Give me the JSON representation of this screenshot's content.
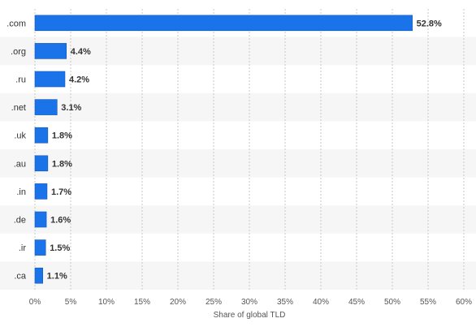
{
  "chart_data": {
    "type": "bar",
    "orientation": "horizontal",
    "categories": [
      ".com",
      ".org",
      ".ru",
      ".net",
      ".uk",
      ".au",
      ".in",
      ".de",
      ".ir",
      ".ca"
    ],
    "values": [
      52.8,
      4.4,
      4.2,
      3.1,
      1.8,
      1.8,
      1.7,
      1.6,
      1.5,
      1.1
    ],
    "value_labels": [
      "52.8%",
      "4.4%",
      "4.2%",
      "3.1%",
      "1.8%",
      "1.8%",
      "1.7%",
      "1.6%",
      "1.5%",
      "1.1%"
    ],
    "xlabel": "Share of global TLD",
    "ylabel": "",
    "xlim": [
      0,
      60
    ],
    "x_ticks": [
      0,
      5,
      10,
      15,
      20,
      25,
      30,
      35,
      40,
      45,
      50,
      55,
      60
    ],
    "x_tick_labels": [
      "0%",
      "5%",
      "10%",
      "15%",
      "20%",
      "25%",
      "30%",
      "35%",
      "40%",
      "45%",
      "50%",
      "55%",
      "60%"
    ],
    "grid": "vertical dashed",
    "legend": "none",
    "colors": {
      "bar": "#1a73e8",
      "bar_outline": "#1259b8",
      "band": "#f6f6f6",
      "grid": "#c8c8c8",
      "text": "#333333"
    }
  }
}
